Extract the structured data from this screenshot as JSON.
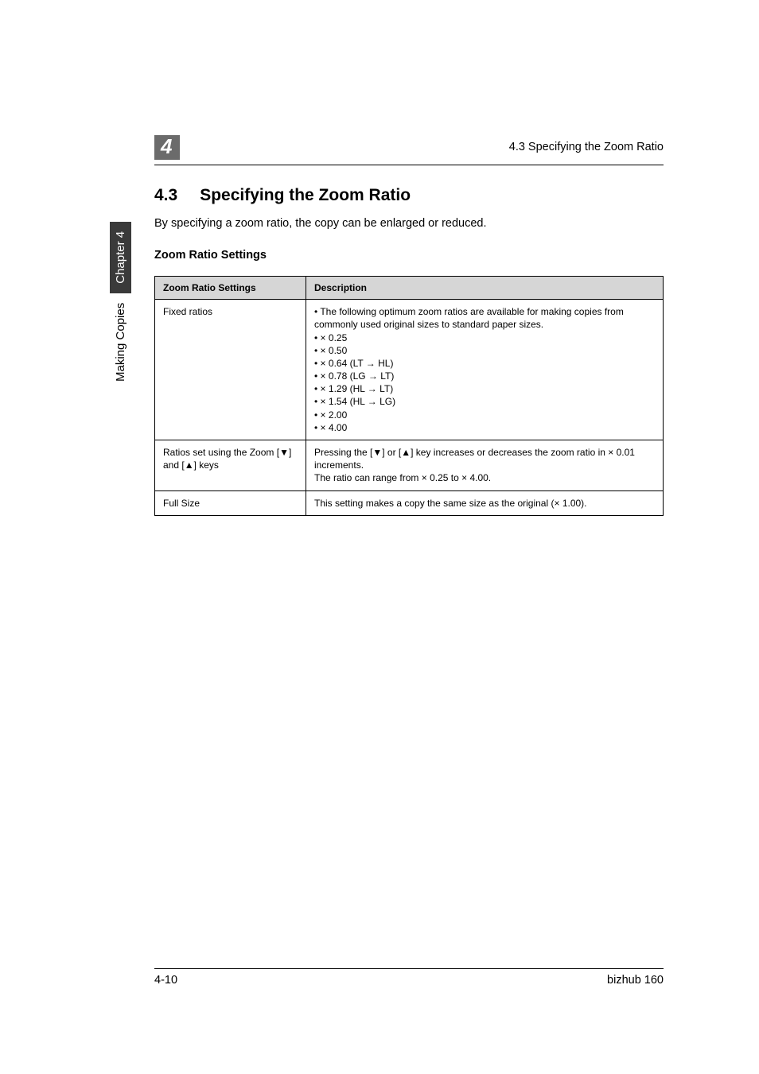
{
  "header": {
    "chapter_number": "4",
    "right_text": "4.3 Specifying the Zoom Ratio"
  },
  "section": {
    "number": "4.3",
    "title": "Specifying the Zoom Ratio",
    "intro": "By specifying a zoom ratio, the copy can be enlarged or reduced.",
    "subhead": "Zoom Ratio Settings"
  },
  "table": {
    "header_left": "Zoom Ratio Settings",
    "header_right": "Description",
    "row1_left": "Fixed ratios",
    "row1_bullets": [
      "The following optimum zoom ratios are available for making copies from commonly used original sizes to standard paper sizes.",
      "× 0.25",
      "× 0.50",
      "× 0.64 (LT → HL)",
      "× 0.78 (LG → LT)",
      "× 1.29 (HL → LT)",
      "× 1.54 (HL → LG)",
      "× 2.00",
      "× 4.00"
    ],
    "row2_left": "Ratios set using the Zoom [▼] and [▲] keys",
    "row2_line1": "Pressing the [▼] or [▲] key increases or decreases the zoom ratio in × 0.01 increments.",
    "row2_line2": "The ratio can range from × 0.25 to × 4.00.",
    "row3_left": "Full Size",
    "row3_right": "This setting makes a copy the same size as the original (× 1.00)."
  },
  "side_tab": {
    "plain": "Making Copies",
    "dark": "Chapter 4"
  },
  "footer": {
    "left": "4-10",
    "right": "bizhub 160"
  }
}
